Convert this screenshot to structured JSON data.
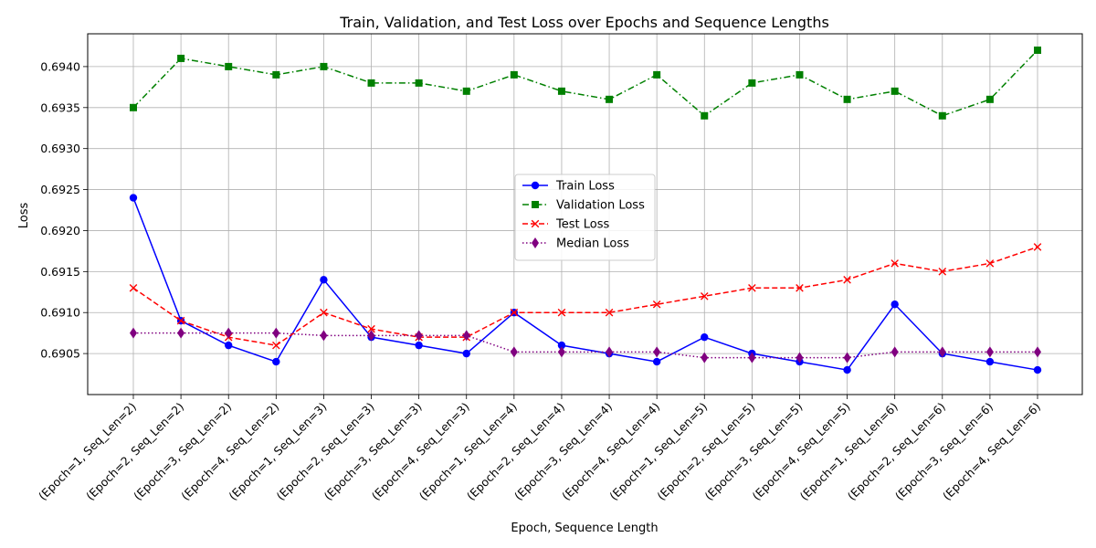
{
  "chart_data": {
    "type": "line",
    "title": "Train, Validation, and Test Loss over Epochs and Sequence Lengths",
    "xlabel": "Epoch, Sequence Length",
    "ylabel": "Loss",
    "ylim": [
      0.69,
      0.6944
    ],
    "yticks": [
      0.6905,
      0.691,
      0.6915,
      0.692,
      0.6925,
      0.693,
      0.6935,
      0.694
    ],
    "ytick_labels": [
      "0.6905",
      "0.6910",
      "0.6915",
      "0.6920",
      "0.6925",
      "0.6930",
      "0.6935",
      "0.6940"
    ],
    "grid": true,
    "legend_position": "center",
    "categories": [
      "(Epoch=1, Seq_Len=2)",
      "(Epoch=2, Seq_Len=2)",
      "(Epoch=3, Seq_Len=2)",
      "(Epoch=4, Seq_Len=2)",
      "(Epoch=1, Seq_Len=3)",
      "(Epoch=2, Seq_Len=3)",
      "(Epoch=3, Seq_Len=3)",
      "(Epoch=4, Seq_Len=3)",
      "(Epoch=1, Seq_Len=4)",
      "(Epoch=2, Seq_Len=4)",
      "(Epoch=3, Seq_Len=4)",
      "(Epoch=4, Seq_Len=4)",
      "(Epoch=1, Seq_Len=5)",
      "(Epoch=2, Seq_Len=5)",
      "(Epoch=3, Seq_Len=5)",
      "(Epoch=4, Seq_Len=5)",
      "(Epoch=1, Seq_Len=6)",
      "(Epoch=2, Seq_Len=6)",
      "(Epoch=3, Seq_Len=6)",
      "(Epoch=4, Seq_Len=6)"
    ],
    "series": [
      {
        "name": "Train Loss",
        "color": "#0000ff",
        "marker": "circle",
        "dash": "solid",
        "values": [
          0.6924,
          0.6909,
          0.6906,
          0.6904,
          0.6914,
          0.6907,
          0.6906,
          0.6905,
          0.691,
          0.6906,
          0.6905,
          0.6904,
          0.6907,
          0.6905,
          0.6904,
          0.6903,
          0.6911,
          0.6905,
          0.6904,
          0.6903
        ]
      },
      {
        "name": "Validation Loss",
        "color": "#008000",
        "marker": "square",
        "dash": "dashdot",
        "values": [
          0.6935,
          0.6941,
          0.694,
          0.6939,
          0.694,
          0.6938,
          0.6938,
          0.6937,
          0.6939,
          0.6937,
          0.6936,
          0.6939,
          0.6934,
          0.6938,
          0.6939,
          0.6936,
          0.6937,
          0.6934,
          0.6936,
          0.6942
        ]
      },
      {
        "name": "Test Loss",
        "color": "#ff0000",
        "marker": "x",
        "dash": "dashed",
        "values": [
          0.6913,
          0.6909,
          0.6907,
          0.6906,
          0.691,
          0.6908,
          0.6907,
          0.6907,
          0.691,
          0.691,
          0.691,
          0.6911,
          0.6912,
          0.6913,
          0.6913,
          0.6914,
          0.6916,
          0.6915,
          0.6916,
          0.6918
        ]
      },
      {
        "name": "Median Loss",
        "color": "#800080",
        "marker": "diamond",
        "dash": "dotted",
        "values": [
          0.69075,
          0.69075,
          0.69075,
          0.69075,
          0.69072,
          0.69072,
          0.69072,
          0.69072,
          0.69052,
          0.69052,
          0.69052,
          0.69052,
          0.69045,
          0.69045,
          0.69045,
          0.69045,
          0.69052,
          0.69052,
          0.69052,
          0.69052
        ]
      }
    ]
  }
}
